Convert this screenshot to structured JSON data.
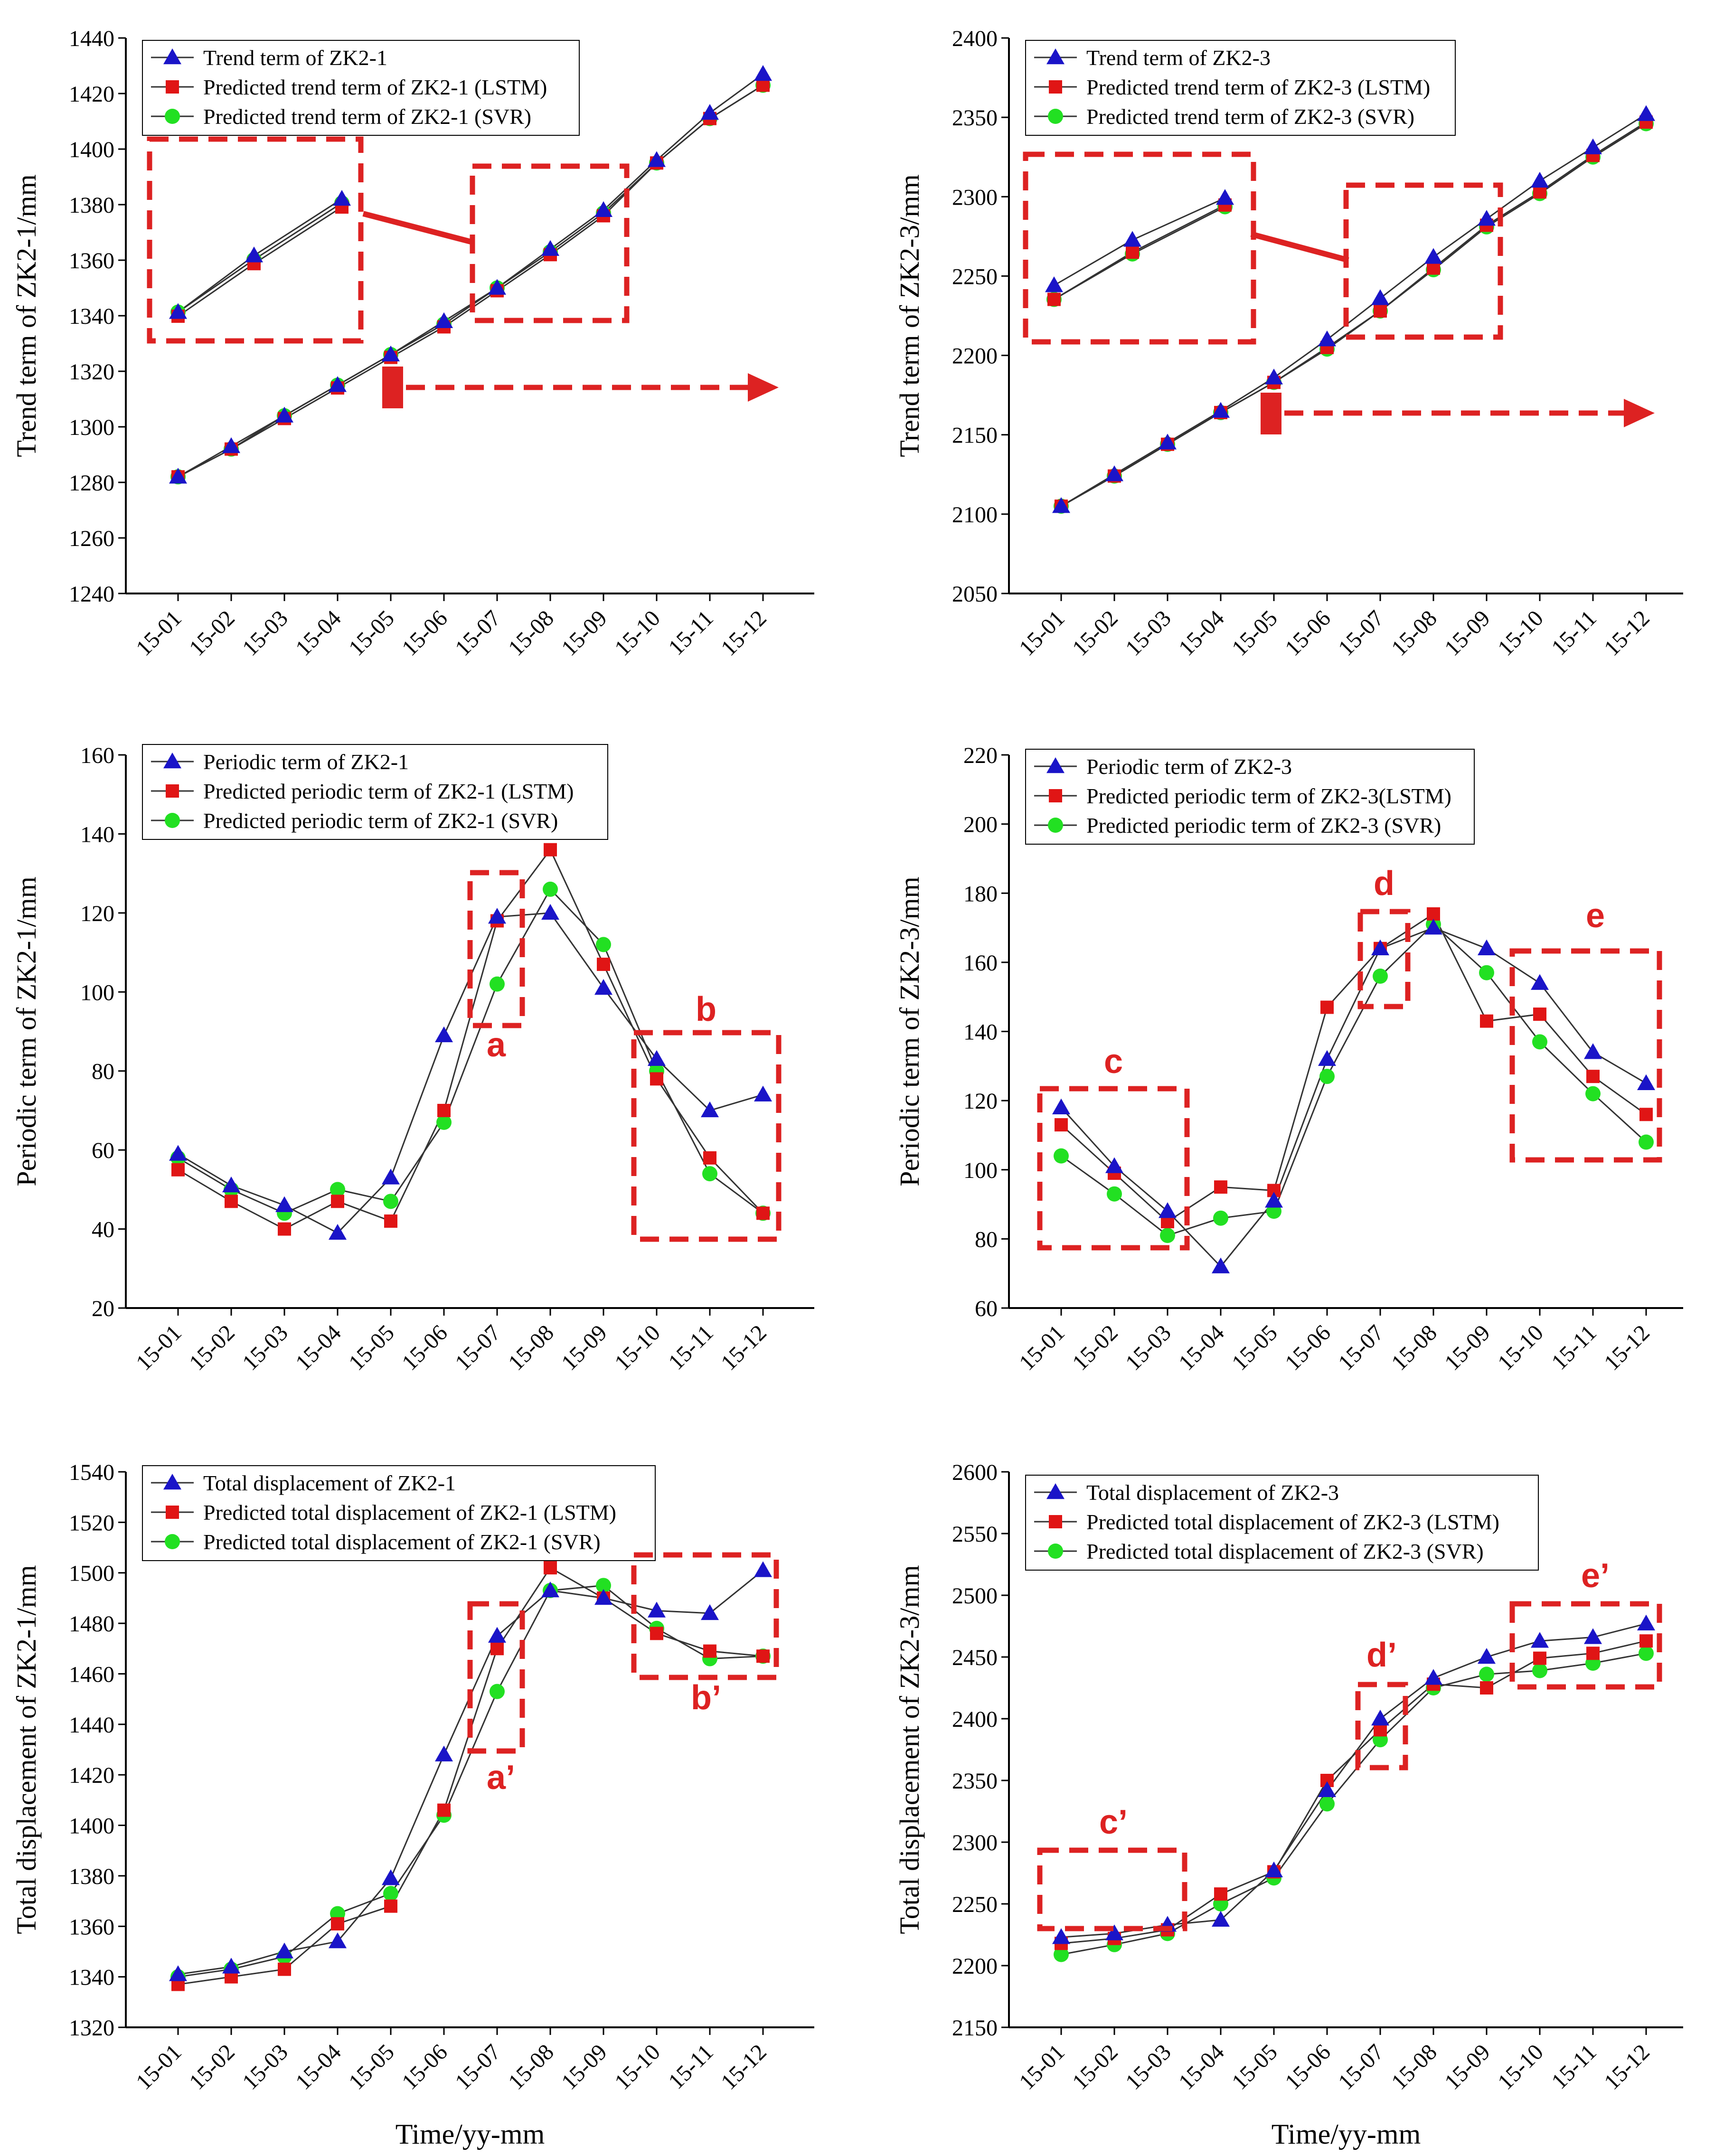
{
  "colors": {
    "observed": "#1a14c8",
    "lstm": "#e01515",
    "svr": "#22e022",
    "annotation": "#dd2222",
    "line": "#333333"
  },
  "chart_data": [
    {
      "id": "p1",
      "type": "line",
      "ylabel": "Trend term of ZK2-1/mm",
      "xlabel": "",
      "ylim": [
        1240,
        1440
      ],
      "yticks": [
        1240,
        1260,
        1280,
        1300,
        1320,
        1340,
        1360,
        1380,
        1400,
        1420,
        1440
      ],
      "categories": [
        "15-01",
        "15-02",
        "15-03",
        "15-04",
        "15-05",
        "15-06",
        "15-07",
        "15-08",
        "15-09",
        "15-10",
        "15-11",
        "15-12"
      ],
      "series": [
        {
          "name": "Trend term of ZK2-1",
          "marker": "triangle",
          "values": [
            1282,
            1293,
            1304,
            1315,
            1326,
            1338,
            1350,
            1364,
            1378,
            1396,
            1413,
            1427
          ]
        },
        {
          "name": "Predicted trend term of ZK2-1 (LSTM)",
          "marker": "square",
          "values": [
            1282,
            1292,
            1303,
            1314,
            1325,
            1336,
            1349,
            1362,
            1376,
            1395,
            1411,
            1423
          ]
        },
        {
          "name": "Predicted trend term of ZK2-1 (SVR)",
          "marker": "circle",
          "values": [
            1282,
            1292,
            1304,
            1315,
            1326,
            1337,
            1350,
            1363,
            1377,
            1395,
            1411,
            1423
          ]
        }
      ]
    },
    {
      "id": "p2",
      "type": "line",
      "ylabel": "Trend term of ZK2-3/mm",
      "xlabel": "",
      "ylim": [
        2050,
        2400
      ],
      "yticks": [
        2050,
        2100,
        2150,
        2200,
        2250,
        2300,
        2350,
        2400
      ],
      "categories": [
        "15-01",
        "15-02",
        "15-03",
        "15-04",
        "15-05",
        "15-06",
        "15-07",
        "15-08",
        "15-09",
        "15-10",
        "15-11",
        "15-12"
      ],
      "series": [
        {
          "name": "Trend term of ZK2-3",
          "marker": "triangle",
          "values": [
            2105,
            2125,
            2145,
            2165,
            2186,
            2210,
            2236,
            2262,
            2286,
            2310,
            2331,
            2352
          ]
        },
        {
          "name": "Predicted trend term of ZK2-3 (LSTM)",
          "marker": "square",
          "values": [
            2105,
            2124,
            2144,
            2164,
            2183,
            2205,
            2228,
            2255,
            2282,
            2303,
            2326,
            2347
          ]
        },
        {
          "name": "Predicted trend term of ZK2-3 (SVR)",
          "marker": "circle",
          "values": [
            2105,
            2124,
            2144,
            2164,
            2183,
            2204,
            2228,
            2254,
            2281,
            2302,
            2325,
            2346
          ]
        }
      ]
    },
    {
      "id": "p3",
      "type": "line",
      "ylabel": "Periodic term of ZK2-1/mm",
      "xlabel": "",
      "ylim": [
        20,
        160
      ],
      "yticks": [
        20,
        40,
        60,
        80,
        100,
        120,
        140,
        160
      ],
      "categories": [
        "15-01",
        "15-02",
        "15-03",
        "15-04",
        "15-05",
        "15-06",
        "15-07",
        "15-08",
        "15-09",
        "15-10",
        "15-11",
        "15-12"
      ],
      "series": [
        {
          "name": "Periodic term of ZK2-1",
          "marker": "triangle",
          "values": [
            59,
            51,
            46,
            39,
            53,
            89,
            119,
            120,
            101,
            83,
            70,
            74
          ]
        },
        {
          "name": "Predicted periodic term of ZK2-1 (LSTM)",
          "marker": "square",
          "values": [
            55,
            47,
            40,
            47,
            42,
            70,
            118,
            136,
            107,
            78,
            58,
            44
          ]
        },
        {
          "name": "Predicted periodic term of ZK2-1 (SVR)",
          "marker": "circle",
          "values": [
            58,
            50,
            44,
            50,
            47,
            67,
            102,
            126,
            112,
            80,
            54,
            44
          ]
        }
      ]
    },
    {
      "id": "p4",
      "type": "line",
      "ylabel": "Periodic term of ZK2-3/mm",
      "xlabel": "",
      "ylim": [
        60,
        220
      ],
      "yticks": [
        60,
        80,
        100,
        120,
        140,
        160,
        180,
        200,
        220
      ],
      "categories": [
        "15-01",
        "15-02",
        "15-03",
        "15-04",
        "15-05",
        "15-06",
        "15-07",
        "15-08",
        "15-09",
        "15-10",
        "15-11",
        "15-12"
      ],
      "series": [
        {
          "name": "Periodic term of ZK2-3",
          "marker": "triangle",
          "values": [
            118,
            101,
            88,
            72,
            91,
            132,
            164,
            170,
            164,
            154,
            134,
            125
          ]
        },
        {
          "name": "Predicted periodic term of ZK2-3(LSTM)",
          "marker": "square",
          "values": [
            113,
            99,
            85,
            95,
            94,
            147,
            164,
            174,
            143,
            145,
            127,
            116
          ]
        },
        {
          "name": "Predicted periodic term of ZK2-3 (SVR)",
          "marker": "circle",
          "values": [
            104,
            93,
            81,
            86,
            88,
            127,
            156,
            171,
            157,
            137,
            122,
            108
          ]
        }
      ]
    },
    {
      "id": "p5",
      "type": "line",
      "ylabel": "Total displacement of ZK2-1/mm",
      "xlabel": "Time/yy-mm",
      "ylim": [
        1320,
        1540
      ],
      "yticks": [
        1320,
        1340,
        1360,
        1380,
        1400,
        1420,
        1440,
        1460,
        1480,
        1500,
        1520,
        1540
      ],
      "categories": [
        "15-01",
        "15-02",
        "15-03",
        "15-04",
        "15-05",
        "15-06",
        "15-07",
        "15-08",
        "15-09",
        "15-10",
        "15-11",
        "15-12"
      ],
      "series": [
        {
          "name": "Total displacement of ZK2-1",
          "marker": "triangle",
          "values": [
            1341,
            1344,
            1350,
            1354,
            1379,
            1428,
            1475,
            1493,
            1490,
            1485,
            1484,
            1501
          ]
        },
        {
          "name": "Predicted  total displacement of ZK2-1 (LSTM)",
          "marker": "square",
          "values": [
            1337,
            1340,
            1343,
            1361,
            1368,
            1406,
            1470,
            1502,
            1490,
            1476,
            1469,
            1467
          ]
        },
        {
          "name": "Predicted  total displacement of ZK2-1 (SVR)",
          "marker": "circle",
          "values": [
            1340,
            1343,
            1348,
            1365,
            1373,
            1404,
            1453,
            1493,
            1495,
            1478,
            1466,
            1467
          ]
        }
      ]
    },
    {
      "id": "p6",
      "type": "line",
      "ylabel": "Total displacement of ZK2-3/mm",
      "xlabel": "Time/yy-mm",
      "ylim": [
        2150,
        2600
      ],
      "yticks": [
        2150,
        2200,
        2250,
        2300,
        2350,
        2400,
        2450,
        2500,
        2550,
        2600
      ],
      "categories": [
        "15-01",
        "15-02",
        "15-03",
        "15-04",
        "15-05",
        "15-06",
        "15-07",
        "15-08",
        "15-09",
        "15-10",
        "15-11",
        "15-12"
      ],
      "series": [
        {
          "name": "Total displacement of ZK2-3",
          "marker": "triangle",
          "values": [
            2223,
            2226,
            2233,
            2237,
            2277,
            2342,
            2400,
            2433,
            2450,
            2463,
            2466,
            2477
          ]
        },
        {
          "name": "Predicted  total displacement of ZK2-3 (LSTM)",
          "marker": "square",
          "values": [
            2218,
            2222,
            2229,
            2258,
            2276,
            2350,
            2391,
            2428,
            2425,
            2449,
            2453,
            2463
          ]
        },
        {
          "name": "Predicted  total displacement of ZK2-3 (SVR)",
          "marker": "circle",
          "values": [
            2209,
            2217,
            2226,
            2250,
            2271,
            2331,
            2383,
            2425,
            2436,
            2439,
            2445,
            2453
          ]
        }
      ]
    }
  ],
  "annotations": {
    "labels": [
      "a",
      "b",
      "c",
      "d",
      "e",
      "a’",
      "b’",
      "c’",
      "d’",
      "e’"
    ]
  }
}
